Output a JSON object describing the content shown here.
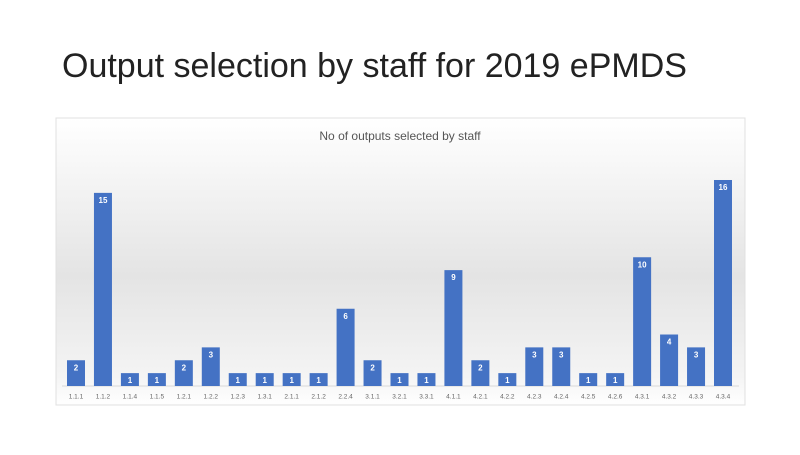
{
  "slide_title": "Output selection by staff for 2019 ePMDS",
  "chart_data": {
    "type": "bar",
    "title": "No of outputs selected by staff",
    "categories": [
      "1.1.1",
      "1.1.2",
      "1.1.4",
      "1.1.5",
      "1.2.1",
      "1.2.2",
      "1.2.3",
      "1.3.1",
      "2.1.1",
      "2.1.2",
      "2.2.4",
      "3.1.1",
      "3.2.1",
      "3.3.1",
      "4.1.1",
      "4.2.1",
      "4.2.2",
      "4.2.3",
      "4.2.4",
      "4.2.5",
      "4.2.6",
      "4.3.1",
      "4.3.2",
      "4.3.3",
      "4.3.4"
    ],
    "values": [
      2,
      15,
      1,
      1,
      2,
      3,
      1,
      1,
      1,
      1,
      6,
      2,
      1,
      1,
      9,
      2,
      1,
      3,
      3,
      1,
      1,
      10,
      4,
      3,
      16
    ],
    "color": "#4472c4"
  }
}
